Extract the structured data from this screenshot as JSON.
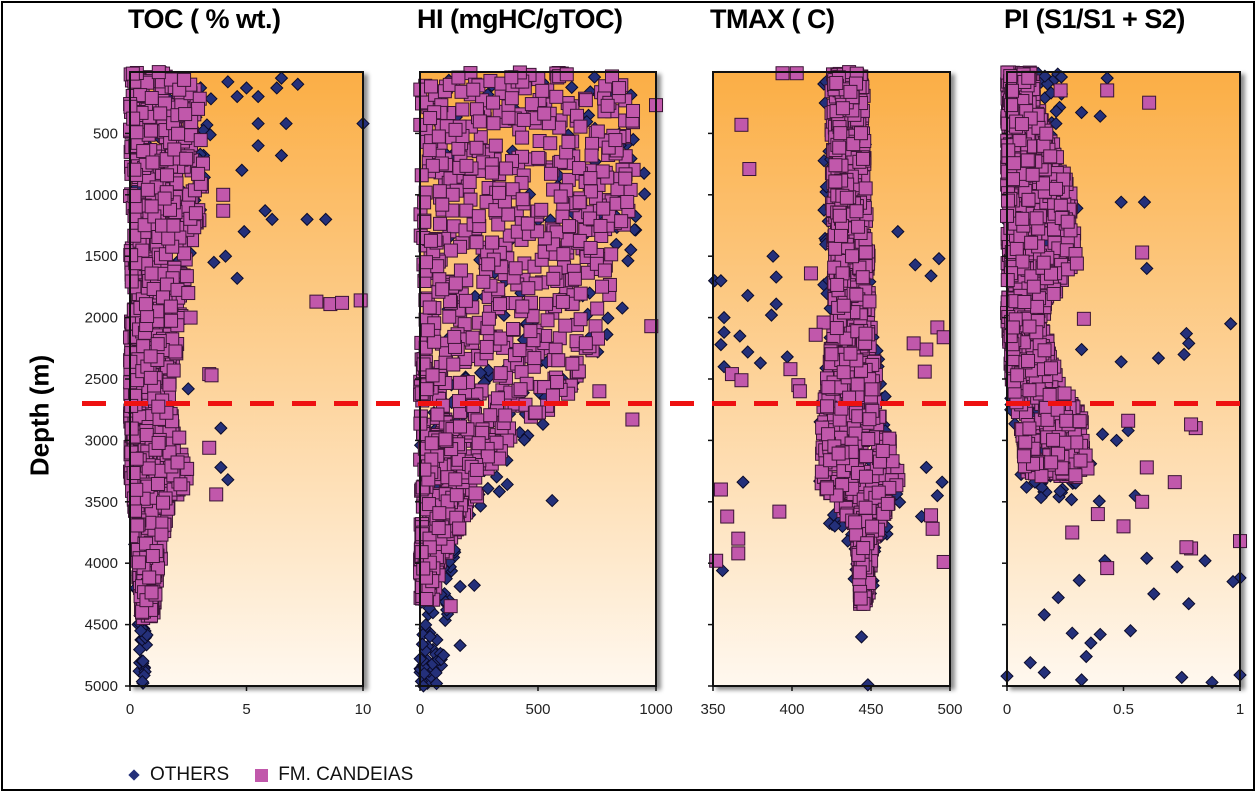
{
  "chart_data": [
    {
      "type": "scatter",
      "title": "TOC ( % wt.)",
      "xlabel": "",
      "ylabel": "Depth (m)",
      "xlim": [
        0,
        10
      ],
      "ylim": [
        5000,
        0
      ],
      "xticks": [
        "0",
        "5",
        "10"
      ],
      "yticks": [
        "500",
        "1000",
        "1500",
        "2000",
        "2500",
        "3000",
        "3500",
        "4000",
        "4500",
        "5000"
      ],
      "series": [
        {
          "name": "OTHERS",
          "marker": "diamond",
          "color": "#24307a",
          "envelope": [
            [
              0,
              0.2,
              3.5
            ],
            [
              1000,
              0.1,
              3.5
            ],
            [
              2000,
              0,
              1.8
            ],
            [
              3000,
              0,
              1.5
            ],
            [
              4000,
              0.2,
              0.8
            ],
            [
              5000,
              0.4,
              0.7
            ]
          ],
          "outliers": [
            [
              6.5,
              50
            ],
            [
              4.2,
              80
            ],
            [
              7.2,
              100
            ],
            [
              6.3,
              130
            ],
            [
              5.0,
              130
            ],
            [
              4.6,
              200
            ],
            [
              5.5,
              200
            ],
            [
              10.0,
              420
            ],
            [
              5.5,
              420
            ],
            [
              6.7,
              420
            ],
            [
              5.5,
              600
            ],
            [
              6.5,
              680
            ],
            [
              4.8,
              800
            ],
            [
              6.1,
              1200
            ],
            [
              5.8,
              1130
            ],
            [
              8.4,
              1200
            ],
            [
              7.6,
              1200
            ],
            [
              4.9,
              1300
            ],
            [
              4.1,
              1500
            ],
            [
              4.6,
              1680
            ],
            [
              3.6,
              1550
            ],
            [
              3.9,
              2900
            ],
            [
              3.9,
              3220
            ],
            [
              4.2,
              3320
            ],
            [
              2.5,
              2580
            ]
          ]
        },
        {
          "name": "FM. CANDEIAS",
          "marker": "square",
          "color": "#c158ab",
          "envelope": [
            [
              0,
              0,
              3.0
            ],
            [
              1000,
              0,
              3.2
            ],
            [
              2000,
              0,
              2.2
            ],
            [
              2700,
              0,
              1.7
            ],
            [
              3300,
              0,
              2.6
            ],
            [
              3600,
              0.2,
              1.6
            ],
            [
              4000,
              0.3,
              1.3
            ],
            [
              4450,
              0.5,
              1.0
            ]
          ],
          "outliers": [
            [
              8.0,
              1870
            ],
            [
              8.6,
              1890
            ],
            [
              9.1,
              1880
            ],
            [
              9.9,
              1860
            ],
            [
              4.0,
              1000
            ],
            [
              4.0,
              1130
            ],
            [
              3.4,
              2460
            ],
            [
              3.5,
              2470
            ],
            [
              3.4,
              3060
            ],
            [
              3.7,
              3440
            ],
            [
              2.5,
              1800
            ],
            [
              2.6,
              2000
            ]
          ]
        }
      ]
    },
    {
      "type": "scatter",
      "title": "HI (mgHC/gTOC)",
      "xlim": [
        0,
        1000
      ],
      "ylim": [
        5000,
        0
      ],
      "xticks": [
        "0",
        "500",
        "1000"
      ],
      "series": [
        {
          "name": "OTHERS",
          "marker": "diamond",
          "color": "#24307a",
          "envelope": [
            [
              0,
              0,
              980
            ],
            [
              1000,
              0,
              960
            ],
            [
              2000,
              0,
              880
            ],
            [
              2800,
              0,
              560
            ],
            [
              3300,
              0,
              400
            ],
            [
              4000,
              0,
              150
            ],
            [
              5000,
              0,
              80
            ]
          ],
          "outliers": [
            [
              560,
              3490
            ],
            [
              230,
              4180
            ],
            [
              170,
              4190
            ],
            [
              170,
              4670
            ],
            [
              100,
              4750
            ],
            [
              70,
              4980
            ]
          ]
        },
        {
          "name": "FM. CANDEIAS",
          "marker": "square",
          "color": "#c158ab",
          "envelope": [
            [
              0,
              0,
              950
            ],
            [
              1000,
              0,
              900
            ],
            [
              2000,
              0,
              800
            ],
            [
              2600,
              0,
              650
            ],
            [
              3000,
              0,
              380
            ],
            [
              3600,
              0,
              200
            ],
            [
              4000,
              0,
              90
            ],
            [
              4300,
              0,
              60
            ]
          ],
          "outliers": [
            [
              1000,
              270
            ],
            [
              980,
              2070
            ],
            [
              900,
              2830
            ],
            [
              760,
              2600
            ],
            [
              130,
              4350
            ]
          ]
        }
      ]
    },
    {
      "type": "scatter",
      "title": "TMAX ( C)",
      "xlim": [
        350,
        500
      ],
      "ylim": [
        5000,
        0
      ],
      "xticks": [
        "350",
        "400",
        "450",
        "500"
      ],
      "series": [
        {
          "name": "OTHERS",
          "marker": "diamond",
          "color": "#24307a",
          "envelope": [
            [
              0,
              420,
              445
            ],
            [
              2000,
              420,
              450
            ],
            [
              2700,
              418,
              460
            ],
            [
              3500,
              415,
              470
            ],
            [
              4000,
              435,
              455
            ],
            [
              4300,
              440,
              450
            ]
          ],
          "outliers": [
            [
              467,
              1300
            ],
            [
              388,
              1500
            ],
            [
              478,
              1570
            ],
            [
              493,
              1520
            ],
            [
              351,
              1700
            ],
            [
              355,
              1700
            ],
            [
              390,
              1670
            ],
            [
              488,
              1660
            ],
            [
              372,
              1820
            ],
            [
              390,
              1890
            ],
            [
              387,
              1980
            ],
            [
              357,
              2000
            ],
            [
              357,
              2120
            ],
            [
              367,
              2150
            ],
            [
              355,
              2220
            ],
            [
              372,
              2280
            ],
            [
              397,
              2320
            ],
            [
              357,
              2400
            ],
            [
              380,
              2370
            ],
            [
              369,
              3340
            ],
            [
              485,
              3220
            ],
            [
              495,
              3340
            ],
            [
              492,
              3450
            ],
            [
              482,
              3620
            ],
            [
              444,
              4600
            ],
            [
              448,
              4990
            ],
            [
              356,
              4060
            ]
          ]
        },
        {
          "name": "FM. CANDEIAS",
          "marker": "square",
          "color": "#c158ab",
          "envelope": [
            [
              0,
              425,
              445
            ],
            [
              1000,
              425,
              447
            ],
            [
              2000,
              427,
              450
            ],
            [
              2700,
              420,
              455
            ],
            [
              3300,
              415,
              470
            ],
            [
              3700,
              440,
              455
            ],
            [
              4000,
              442,
              450
            ],
            [
              4350,
              443,
              448
            ]
          ],
          "outliers": [
            [
              394,
              10
            ],
            [
              403,
              10
            ],
            [
              368,
              430
            ],
            [
              373,
              790
            ],
            [
              438,
              1500
            ],
            [
              412,
              1640
            ],
            [
              420,
              2040
            ],
            [
              415,
              2140
            ],
            [
              399,
              2420
            ],
            [
              362,
              2460
            ],
            [
              368,
              2510
            ],
            [
              404,
              2550
            ],
            [
              405,
              2600
            ],
            [
              492,
              2080
            ],
            [
              496,
              2160
            ],
            [
              485,
              2260
            ],
            [
              484,
              2440
            ],
            [
              477,
              2210
            ],
            [
              355,
              3400
            ],
            [
              392,
              3580
            ],
            [
              359,
              3620
            ],
            [
              366,
              3800
            ],
            [
              352,
              3980
            ],
            [
              366,
              3920
            ],
            [
              489,
              3720
            ],
            [
              496,
              3990
            ],
            [
              488,
              3610
            ]
          ]
        }
      ]
    },
    {
      "type": "scatter",
      "title": "PI (S1/S1 + S2)",
      "xlim": [
        0,
        1
      ],
      "ylim": [
        5000,
        0
      ],
      "xticks": [
        "0",
        "0.5",
        "1"
      ],
      "series": [
        {
          "name": "OTHERS",
          "marker": "diamond",
          "color": "#24307a",
          "envelope": [
            [
              0,
              0,
              0.25
            ],
            [
              1000,
              0,
              0.2
            ],
            [
              2000,
              0,
              0.15
            ],
            [
              2700,
              0,
              0.2
            ],
            [
              3300,
              0.05,
              0.4
            ],
            [
              3500,
              0.1,
              0.4
            ]
          ],
          "outliers": [
            [
              0.43,
              50
            ],
            [
              0.06,
              150
            ],
            [
              0.32,
              330
            ],
            [
              0.4,
              360
            ],
            [
              0.21,
              420
            ],
            [
              0.49,
              1060
            ],
            [
              0.59,
              1060
            ],
            [
              0.6,
              1600
            ],
            [
              0.3,
              1110
            ],
            [
              0.96,
              2050
            ],
            [
              0.77,
              2130
            ],
            [
              0.78,
              2210
            ],
            [
              0.76,
              2300
            ],
            [
              0.65,
              2330
            ],
            [
              0.49,
              2360
            ],
            [
              0.32,
              2260
            ],
            [
              0.52,
              2920
            ],
            [
              0.41,
              2950
            ],
            [
              0.47,
              3000
            ],
            [
              0.55,
              3450
            ],
            [
              0.12,
              3340
            ],
            [
              0.42,
              3980
            ],
            [
              0.6,
              3960
            ],
            [
              0.73,
              4030
            ],
            [
              0.85,
              3980
            ],
            [
              0.63,
              4250
            ],
            [
              1.0,
              4120
            ],
            [
              0.97,
              4150
            ],
            [
              0.78,
              4330
            ],
            [
              0.53,
              4550
            ],
            [
              0.31,
              4140
            ],
            [
              0.22,
              4280
            ],
            [
              0.36,
              4650
            ],
            [
              0.34,
              4760
            ],
            [
              0.1,
              4810
            ],
            [
              0.16,
              4890
            ],
            [
              0.32,
              4950
            ],
            [
              0.0,
              4920
            ],
            [
              0.75,
              4930
            ],
            [
              0.88,
              4970
            ],
            [
              1.0,
              4910
            ],
            [
              0.4,
              4580
            ],
            [
              0.16,
              4420
            ],
            [
              0.28,
              4570
            ]
          ]
        },
        {
          "name": "FM. CANDEIAS",
          "marker": "square",
          "color": "#c158ab",
          "envelope": [
            [
              0,
              0,
              0.1
            ],
            [
              500,
              0,
              0.18
            ],
            [
              1000,
              0,
              0.28
            ],
            [
              1500,
              0,
              0.3
            ],
            [
              2000,
              0,
              0.15
            ],
            [
              2500,
              0.02,
              0.22
            ],
            [
              2800,
              0.05,
              0.32
            ],
            [
              3300,
              0.08,
              0.35
            ]
          ],
          "outliers": [
            [
              0.23,
              150
            ],
            [
              0.43,
              150
            ],
            [
              0.61,
              250
            ],
            [
              0.52,
              2840
            ],
            [
              0.72,
              3340
            ],
            [
              0.6,
              3220
            ],
            [
              0.58,
              3500
            ],
            [
              0.5,
              3700
            ],
            [
              0.39,
              3600
            ],
            [
              0.28,
              3750
            ],
            [
              0.79,
              3880
            ],
            [
              0.77,
              3870
            ],
            [
              1.0,
              3820
            ],
            [
              0.81,
              2900
            ],
            [
              0.3,
              1560
            ],
            [
              0.33,
              2010
            ],
            [
              0.58,
              1470
            ],
            [
              0.79,
              2870
            ],
            [
              0.43,
              4040
            ]
          ]
        }
      ]
    }
  ],
  "shared": {
    "ylabel": "Depth (m)",
    "threshold_depth": 2700,
    "threshold_color": "#ee1111",
    "legend": [
      {
        "label": "OTHERS",
        "marker": "diamond",
        "color": "#24307a"
      },
      {
        "label": "FM. CANDEIAS",
        "marker": "square",
        "color": "#c158ab"
      }
    ],
    "background_gradient": {
      "top": "#fbae45",
      "bottom": "#fff8ef"
    }
  }
}
